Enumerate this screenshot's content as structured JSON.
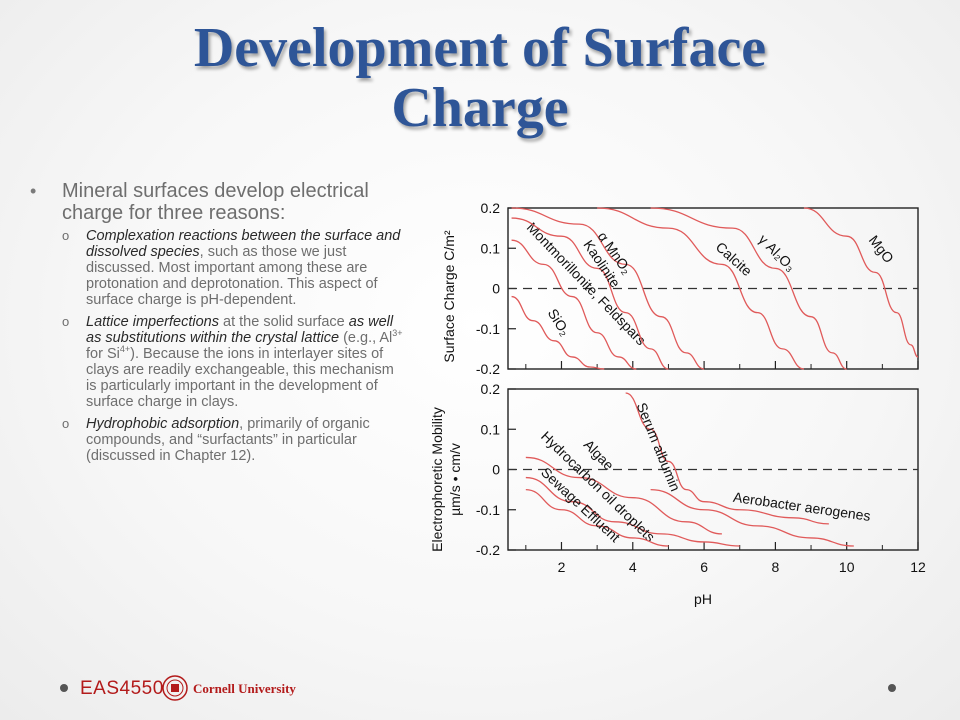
{
  "slide": {
    "title_line1": "Development of Surface",
    "title_line2": "Charge"
  },
  "bullets": {
    "main": "Mineral surfaces develop electrical charge for three reasons:",
    "sub": [
      {
        "i1": "Complexation reactions between the surface and dissolved species",
        "t1": ", such as those we just discussed. Most important among these are protonation and deprotonation. This aspect of surface charge is pH-dependent."
      },
      {
        "i1": "Lattice imperfections",
        "t1": " at the solid surface ",
        "i2": "as well as substitutions within the crystal lattice",
        "t2": " (e.g., Al",
        "sup1": "3+",
        "t3": " for Si",
        "sup2": "4+",
        "t4": "). Because the ions in interlayer sites of clays are readily exchangeable, this mechanism is particularly important in the development of surface charge in clays."
      },
      {
        "i1": "Hydrophobic adsorption",
        "t1": ", primarily of organic compounds, and “surfactants” in particular (discussed in Chapter 12)."
      }
    ]
  },
  "chart_data": [
    {
      "type": "line",
      "ylabel": "Surface Charge C/m²",
      "xlim": [
        0.5,
        12
      ],
      "ylim": [
        -0.2,
        0.2
      ],
      "yticks": [
        "0.2",
        "0.1",
        "0",
        "-0.1",
        "-0.2"
      ],
      "reference_line": {
        "y": 0,
        "style": "dashed"
      },
      "series": [
        {
          "name": "SiO₂",
          "x": [
            0.6,
            1.2,
            1.8,
            2.3,
            2.8,
            3.2
          ],
          "y": [
            -0.02,
            -0.08,
            -0.13,
            -0.17,
            -0.195,
            -0.2
          ]
        },
        {
          "name": "Montmorillonite, Feldspars",
          "x": [
            0.6,
            1.5,
            2.3,
            3.0,
            3.6,
            4.1
          ],
          "y": [
            0.12,
            0.06,
            -0.02,
            -0.11,
            -0.17,
            -0.2
          ]
        },
        {
          "name": "Kaolinite",
          "x": [
            0.6,
            2.0,
            3.0,
            3.8,
            4.5,
            5.0
          ],
          "y": [
            0.175,
            0.13,
            0.05,
            -0.06,
            -0.15,
            -0.2
          ]
        },
        {
          "name": "α MnO₂",
          "x": [
            0.6,
            2.5,
            3.8,
            4.8,
            5.5,
            6.0
          ],
          "y": [
            0.2,
            0.16,
            0.06,
            -0.07,
            -0.16,
            -0.2
          ]
        },
        {
          "name": "Calcite",
          "x": [
            3.0,
            5.0,
            6.5,
            7.5,
            8.2,
            8.8
          ],
          "y": [
            0.2,
            0.15,
            0.06,
            -0.06,
            -0.15,
            -0.2
          ]
        },
        {
          "name": "γ Al₂O₃",
          "x": [
            4.5,
            6.8,
            8.0,
            9.0,
            9.6,
            10.0
          ],
          "y": [
            0.2,
            0.15,
            0.05,
            -0.07,
            -0.16,
            -0.2
          ]
        },
        {
          "name": "MgO",
          "x": [
            8.8,
            10.0,
            10.8,
            11.4,
            11.8,
            12.0
          ],
          "y": [
            0.2,
            0.13,
            0.04,
            -0.06,
            -0.14,
            -0.17
          ]
        }
      ]
    },
    {
      "type": "line",
      "ylabel": "Electrophoretic Mobility µm/s • cm/v",
      "xlabel": "pH",
      "xlim": [
        0.5,
        12
      ],
      "ylim": [
        -0.2,
        0.2
      ],
      "xticks": [
        "2",
        "4",
        "6",
        "8",
        "10",
        "12"
      ],
      "yticks": [
        "0.2",
        "0.1",
        "0",
        "-0.1",
        "-0.2"
      ],
      "reference_line": {
        "y": 0,
        "style": "dashed"
      },
      "series": [
        {
          "name": "Serum albumin",
          "x": [
            3.8,
            4.5,
            5.0,
            5.5,
            6.0,
            7.0,
            8.5,
            9.5
          ],
          "y": [
            0.19,
            0.1,
            0.02,
            -0.05,
            -0.08,
            -0.1,
            -0.12,
            -0.135
          ]
        },
        {
          "name": "Algae",
          "x": [
            1.0,
            2.5,
            4.0,
            5.5,
            6.5
          ],
          "y": [
            0.03,
            -0.02,
            -0.07,
            -0.13,
            -0.16
          ]
        },
        {
          "name": "Hydrocarbon oil droplets",
          "x": [
            1.0,
            2.3,
            3.5,
            4.8,
            6.0,
            7.0
          ],
          "y": [
            -0.02,
            -0.08,
            -0.13,
            -0.16,
            -0.18,
            -0.19
          ]
        },
        {
          "name": "Sewage Effluent",
          "x": [
            1.0,
            2.0,
            3.0,
            4.0,
            5.0
          ],
          "y": [
            -0.05,
            -0.1,
            -0.14,
            -0.17,
            -0.19
          ]
        },
        {
          "name": "Aerobacter aerogenes",
          "x": [
            4.5,
            6.0,
            7.5,
            9.0,
            10.2
          ],
          "y": [
            -0.05,
            -0.1,
            -0.14,
            -0.17,
            -0.19
          ]
        }
      ]
    }
  ],
  "footer": {
    "course": "EAS4550",
    "university": "Cornell University"
  },
  "colors": {
    "title": "#2e5597",
    "curve": "#e05a5a",
    "brand": "#b31b1b"
  }
}
